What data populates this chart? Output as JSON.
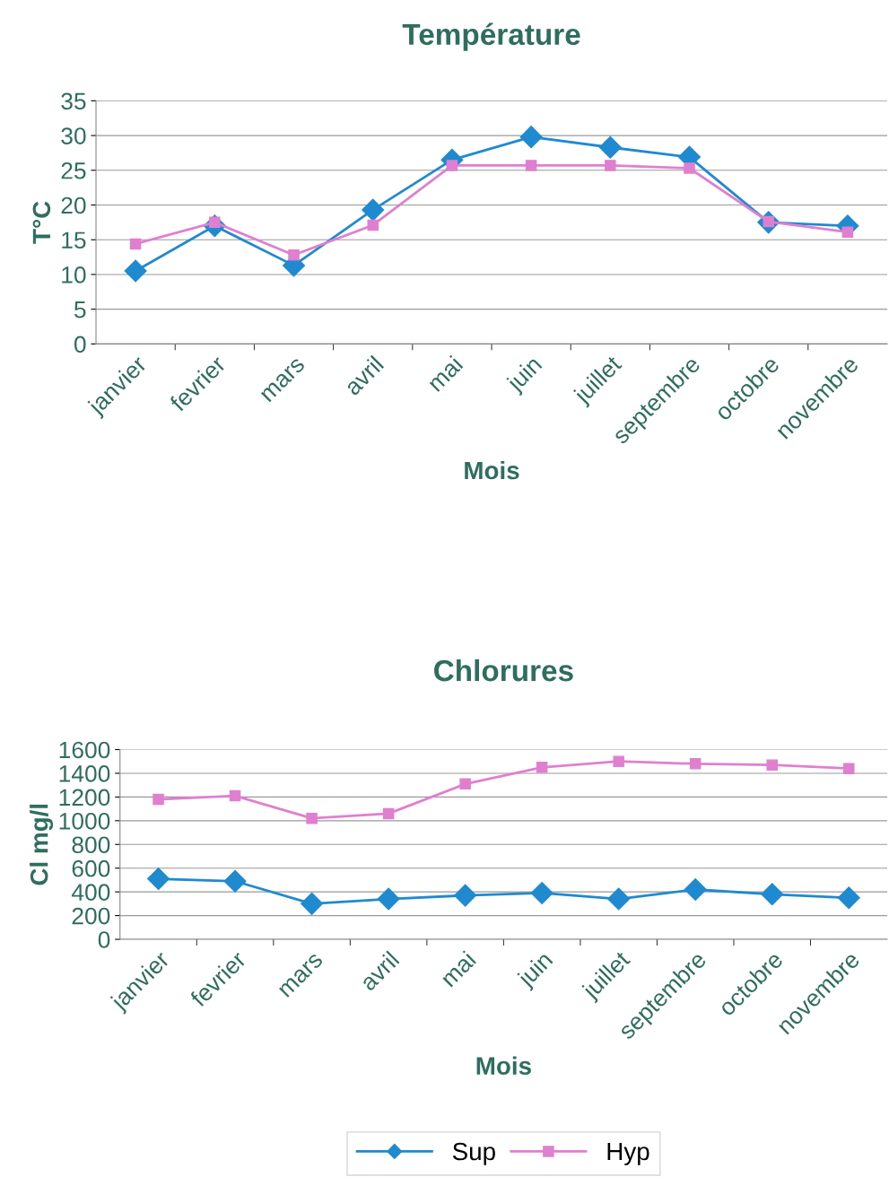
{
  "chart_data": [
    {
      "type": "line",
      "title": "Température",
      "xlabel": "Mois",
      "ylabel": "T°C",
      "categories": [
        "janvier",
        "fevrier",
        "mars",
        "avril",
        "mai",
        "juin",
        "juillet",
        "septembre",
        "octobre",
        "novembre"
      ],
      "series": [
        {
          "color": "#1f8ad0",
          "marker": "diamond",
          "values": [
            10.5,
            17,
            11.3,
            19.3,
            26.5,
            29.8,
            28.3,
            26.9,
            17.5,
            17
          ]
        },
        {
          "color": "#e07fd0",
          "marker": "square",
          "values": [
            14.4,
            17.5,
            12.8,
            17.1,
            25.7,
            25.7,
            25.7,
            25.3,
            17.6,
            16.1
          ]
        }
      ],
      "ylim": [
        0,
        35
      ],
      "yticks": [
        0,
        5,
        10,
        15,
        20,
        25,
        30,
        35
      ],
      "grid": "y",
      "legend": false
    },
    {
      "type": "line",
      "title": "Chlorures",
      "xlabel": "Mois",
      "ylabel": "Cl mg/l",
      "categories": [
        "janvier",
        "fevrier",
        "mars",
        "avril",
        "mai",
        "juin",
        "juillet",
        "septembre",
        "octobre",
        "novembre"
      ],
      "series": [
        {
          "name": "Sup",
          "color": "#1f8ad0",
          "marker": "diamond",
          "values": [
            510,
            490,
            300,
            340,
            370,
            390,
            340,
            420,
            380,
            350
          ]
        },
        {
          "name": "Hyp",
          "color": "#e07fd0",
          "marker": "square",
          "values": [
            1180,
            1210,
            1020,
            1060,
            1310,
            1450,
            1500,
            1480,
            1470,
            1440
          ]
        }
      ],
      "ylim": [
        0,
        1600
      ],
      "yticks": [
        0,
        200,
        400,
        600,
        800,
        1000,
        1200,
        1400,
        1600
      ],
      "grid": "y",
      "legend": "bottom"
    }
  ]
}
